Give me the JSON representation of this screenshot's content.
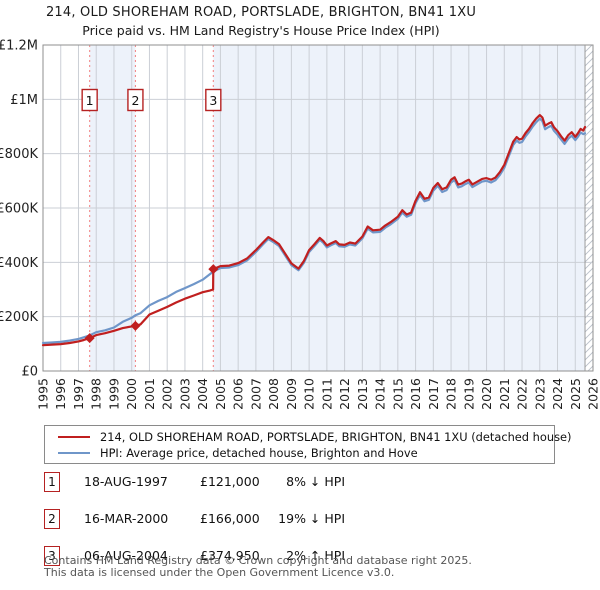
{
  "title": "214, OLD SHOREHAM ROAD, PORTSLADE, BRIGHTON, BN41 1XU",
  "subtitle": "Price paid vs. HM Land Registry's House Price Index (HPI)",
  "colors": {
    "price_paid_line": "#c01f1f",
    "hpi_line": "#6f96c9",
    "sale_dashed_line": "#f28a8a",
    "sale_box_border": "#b52222",
    "band_blue": "#edf2fa",
    "grid": "#cbcfd6",
    "border": "#8f8f8f",
    "hatch_line": "#b9bfc9"
  },
  "chart_data": {
    "type": "line",
    "title": "214, OLD SHOREHAM ROAD, PORTSLADE, BRIGHTON, BN41 1XU",
    "subtitle": "Price paid vs. HM Land Registry's House Price Index (HPI)",
    "xlabel": "",
    "ylabel": "",
    "unit": "GBP thousands",
    "x_range": [
      1995,
      2026
    ],
    "ylim_k": [
      0,
      1200
    ],
    "grid": true,
    "legend_position": "below",
    "data_end_year": 2025.55,
    "y_ticks": [
      {
        "v": 0,
        "label": "£0"
      },
      {
        "v": 200,
        "label": "£200K"
      },
      {
        "v": 400,
        "label": "£400K"
      },
      {
        "v": 600,
        "label": "£600K"
      },
      {
        "v": 800,
        "label": "£800K"
      },
      {
        "v": 1000,
        "label": "£1M"
      },
      {
        "v": 1200,
        "label": "£1.2M"
      }
    ],
    "x_tick_labels": [
      "1995",
      "1996",
      "1997",
      "1998",
      "1999",
      "2000",
      "2001",
      "2002",
      "2003",
      "2004",
      "2005",
      "2006",
      "2007",
      "2008",
      "2009",
      "2010",
      "2011",
      "2012",
      "2013",
      "2014",
      "2015",
      "2016",
      "2017",
      "2018",
      "2019",
      "2020",
      "2021",
      "2022",
      "2023",
      "2024",
      "2025",
      "2026"
    ],
    "bands": [
      {
        "from": 1995,
        "to": 1997.63,
        "color": "#ffffff"
      },
      {
        "from": 1997.63,
        "to": 2000.21,
        "color": "#edf2fa"
      },
      {
        "from": 2000.21,
        "to": 2004.6,
        "color": "#ffffff"
      },
      {
        "from": 2004.6,
        "to": 2025.55,
        "color": "#edf2fa"
      }
    ],
    "series": [
      {
        "name": "214, OLD SHOREHAM ROAD, PORTSLADE, BRIGHTON, BN41 1XU (detached house)",
        "color": "#c01f1f",
        "points": [
          [
            1995,
            95
          ],
          [
            1995.5,
            97
          ],
          [
            1996,
            99
          ],
          [
            1996.5,
            103
          ],
          [
            1997,
            109
          ],
          [
            1997.3,
            114
          ],
          [
            1997.63,
            121
          ],
          [
            1998,
            132
          ],
          [
            1998.5,
            139
          ],
          [
            1999,
            148
          ],
          [
            1999.5,
            158
          ],
          [
            2000,
            164
          ],
          [
            2000.21,
            166
          ],
          [
            2000.5,
            172
          ],
          [
            2001,
            208
          ],
          [
            2001.5,
            222
          ],
          [
            2002,
            236
          ],
          [
            2002.5,
            252
          ],
          [
            2003,
            266
          ],
          [
            2003.5,
            278
          ],
          [
            2004,
            290
          ],
          [
            2004.4,
            296
          ],
          [
            2004.59,
            300
          ],
          [
            2004.6,
            375
          ],
          [
            2005,
            386
          ],
          [
            2005.5,
            388
          ],
          [
            2006,
            397
          ],
          [
            2006.5,
            414
          ],
          [
            2007,
            445
          ],
          [
            2007.4,
            473
          ],
          [
            2007.7,
            493
          ],
          [
            2008,
            481
          ],
          [
            2008.3,
            467
          ],
          [
            2008.6,
            437
          ],
          [
            2009,
            396
          ],
          [
            2009.4,
            377
          ],
          [
            2009.7,
            404
          ],
          [
            2010,
            445
          ],
          [
            2010.3,
            467
          ],
          [
            2010.6,
            490
          ],
          [
            2010.8,
            479
          ],
          [
            2011,
            462
          ],
          [
            2011.2,
            469
          ],
          [
            2011.5,
            478
          ],
          [
            2011.7,
            466
          ],
          [
            2012,
            464
          ],
          [
            2012.3,
            473
          ],
          [
            2012.6,
            469
          ],
          [
            2013,
            495
          ],
          [
            2013.3,
            532
          ],
          [
            2013.6,
            518
          ],
          [
            2014,
            520
          ],
          [
            2014.3,
            536
          ],
          [
            2014.6,
            548
          ],
          [
            2015,
            568
          ],
          [
            2015.25,
            592
          ],
          [
            2015.5,
            576
          ],
          [
            2015.75,
            583
          ],
          [
            2016,
            627
          ],
          [
            2016.25,
            658
          ],
          [
            2016.5,
            634
          ],
          [
            2016.75,
            639
          ],
          [
            2017,
            674
          ],
          [
            2017.25,
            692
          ],
          [
            2017.5,
            669
          ],
          [
            2017.75,
            676
          ],
          [
            2018,
            704
          ],
          [
            2018.2,
            713
          ],
          [
            2018.4,
            686
          ],
          [
            2018.6,
            690
          ],
          [
            2018.8,
            698
          ],
          [
            2019,
            704
          ],
          [
            2019.2,
            687
          ],
          [
            2019.5,
            698
          ],
          [
            2019.75,
            707
          ],
          [
            2020,
            710
          ],
          [
            2020.25,
            704
          ],
          [
            2020.5,
            712
          ],
          [
            2020.75,
            732
          ],
          [
            2021,
            759
          ],
          [
            2021.25,
            801
          ],
          [
            2021.5,
            844
          ],
          [
            2021.7,
            861
          ],
          [
            2021.85,
            852
          ],
          [
            2022,
            855
          ],
          [
            2022.2,
            876
          ],
          [
            2022.4,
            892
          ],
          [
            2022.6,
            913
          ],
          [
            2022.8,
            929
          ],
          [
            2023,
            942
          ],
          [
            2023.15,
            933
          ],
          [
            2023.3,
            903
          ],
          [
            2023.5,
            911
          ],
          [
            2023.65,
            916
          ],
          [
            2023.8,
            897
          ],
          [
            2024,
            883
          ],
          [
            2024.2,
            864
          ],
          [
            2024.4,
            848
          ],
          [
            2024.6,
            868
          ],
          [
            2024.8,
            879
          ],
          [
            2025,
            862
          ],
          [
            2025.15,
            875
          ],
          [
            2025.3,
            891
          ],
          [
            2025.45,
            885
          ],
          [
            2025.55,
            898
          ]
        ]
      },
      {
        "name": "HPI: Average price, detached house, Brighton and Hove",
        "color": "#6f96c9",
        "points": [
          [
            1995,
            103
          ],
          [
            1995.5,
            105
          ],
          [
            1996,
            107
          ],
          [
            1996.5,
            112
          ],
          [
            1997,
            118
          ],
          [
            1997.3,
            124
          ],
          [
            1997.63,
            131
          ],
          [
            1998,
            143
          ],
          [
            1998.5,
            150
          ],
          [
            1999,
            160
          ],
          [
            1999.5,
            181
          ],
          [
            2000,
            196
          ],
          [
            2000.21,
            205
          ],
          [
            2000.5,
            213
          ],
          [
            2001,
            242
          ],
          [
            2001.5,
            258
          ],
          [
            2002,
            272
          ],
          [
            2002.5,
            291
          ],
          [
            2003,
            305
          ],
          [
            2003.5,
            320
          ],
          [
            2004,
            336
          ],
          [
            2004.4,
            356
          ],
          [
            2004.6,
            366
          ],
          [
            2005,
            379
          ],
          [
            2005.5,
            381
          ],
          [
            2006,
            390
          ],
          [
            2006.5,
            407
          ],
          [
            2007,
            438
          ],
          [
            2007.4,
            466
          ],
          [
            2007.7,
            486
          ],
          [
            2008,
            474
          ],
          [
            2008.3,
            460
          ],
          [
            2008.6,
            430
          ],
          [
            2009,
            390
          ],
          [
            2009.4,
            371
          ],
          [
            2009.7,
            398
          ],
          [
            2010,
            438
          ],
          [
            2010.3,
            460
          ],
          [
            2010.6,
            483
          ],
          [
            2010.8,
            472
          ],
          [
            2011,
            455
          ],
          [
            2011.2,
            462
          ],
          [
            2011.5,
            471
          ],
          [
            2011.7,
            459
          ],
          [
            2012,
            457
          ],
          [
            2012.3,
            466
          ],
          [
            2012.6,
            462
          ],
          [
            2013,
            488
          ],
          [
            2013.3,
            524
          ],
          [
            2013.6,
            510
          ],
          [
            2014,
            512
          ],
          [
            2014.3,
            528
          ],
          [
            2014.6,
            540
          ],
          [
            2015,
            560
          ],
          [
            2015.25,
            583
          ],
          [
            2015.5,
            568
          ],
          [
            2015.75,
            575
          ],
          [
            2016,
            618
          ],
          [
            2016.25,
            648
          ],
          [
            2016.5,
            625
          ],
          [
            2016.75,
            630
          ],
          [
            2017,
            664
          ],
          [
            2017.25,
            682
          ],
          [
            2017.5,
            659
          ],
          [
            2017.75,
            666
          ],
          [
            2018,
            694
          ],
          [
            2018.2,
            703
          ],
          [
            2018.4,
            676
          ],
          [
            2018.6,
            680
          ],
          [
            2018.8,
            688
          ],
          [
            2019,
            694
          ],
          [
            2019.2,
            677
          ],
          [
            2019.5,
            688
          ],
          [
            2019.75,
            697
          ],
          [
            2020,
            700
          ],
          [
            2020.25,
            694
          ],
          [
            2020.5,
            702
          ],
          [
            2020.75,
            722
          ],
          [
            2021,
            748
          ],
          [
            2021.25,
            790
          ],
          [
            2021.5,
            832
          ],
          [
            2021.7,
            849
          ],
          [
            2021.85,
            840
          ],
          [
            2022,
            843
          ],
          [
            2022.2,
            864
          ],
          [
            2022.4,
            880
          ],
          [
            2022.6,
            900
          ],
          [
            2022.8,
            916
          ],
          [
            2023,
            929
          ],
          [
            2023.15,
            920
          ],
          [
            2023.3,
            890
          ],
          [
            2023.5,
            898
          ],
          [
            2023.65,
            903
          ],
          [
            2023.8,
            884
          ],
          [
            2024,
            870
          ],
          [
            2024.2,
            852
          ],
          [
            2024.4,
            836
          ],
          [
            2024.6,
            855
          ],
          [
            2024.8,
            866
          ],
          [
            2025,
            850
          ],
          [
            2025.15,
            862
          ],
          [
            2025.3,
            878
          ],
          [
            2025.45,
            872
          ],
          [
            2025.55,
            875
          ]
        ]
      }
    ],
    "sales": [
      {
        "label": "1",
        "year": 1997.63,
        "price_k": 121
      },
      {
        "label": "2",
        "year": 2000.21,
        "price_k": 166
      },
      {
        "label": "3",
        "year": 2004.6,
        "price_k": 374.95
      }
    ]
  },
  "legend": {
    "items": [
      {
        "label": "214, OLD SHOREHAM ROAD, PORTSLADE, BRIGHTON, BN41 1XU (detached house)",
        "color": "#c01f1f"
      },
      {
        "label": "HPI: Average price, detached house, Brighton and Hove",
        "color": "#6f96c9"
      }
    ]
  },
  "transactions": [
    {
      "num": "1",
      "date": "18-AUG-1997",
      "price": "£121,000",
      "hpi": "8% ↓ HPI"
    },
    {
      "num": "2",
      "date": "16-MAR-2000",
      "price": "£166,000",
      "hpi": "19% ↓ HPI"
    },
    {
      "num": "3",
      "date": "06-AUG-2004",
      "price": "£374,950",
      "hpi": "2% ↑ HPI"
    }
  ],
  "footer": {
    "line1": "Contains HM Land Registry data © Crown copyright and database right 2025.",
    "line2": "This data is licensed under the Open Government Licence v3.0."
  }
}
